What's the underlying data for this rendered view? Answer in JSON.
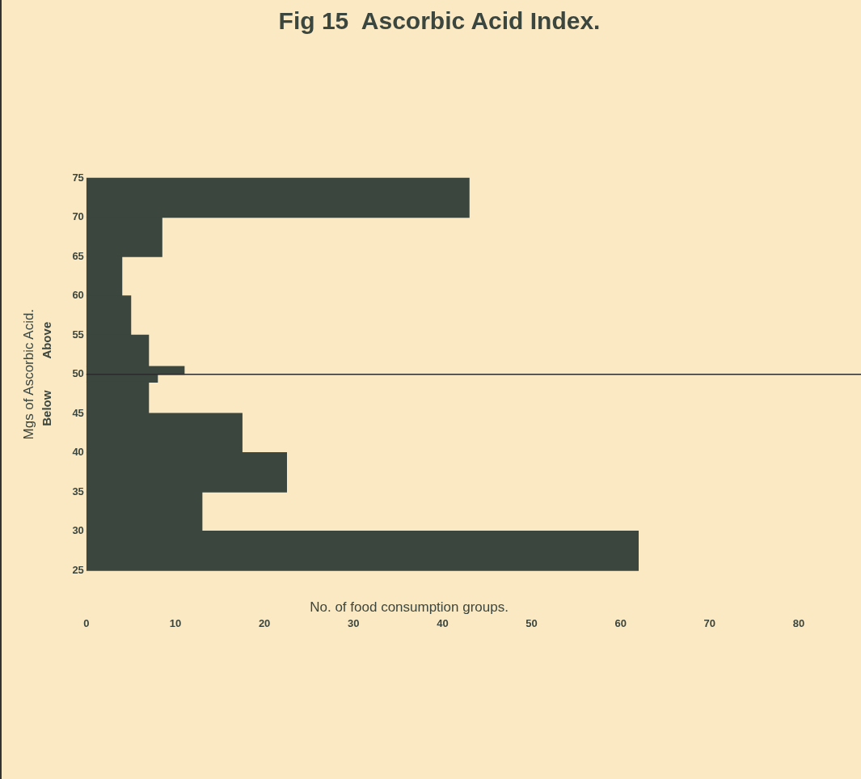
{
  "chart_data": {
    "type": "histogram",
    "orientation": "horizontal",
    "title": "Fig 15  Ascorbic Acid Index.",
    "xlabel": "No. of food consumption groups.",
    "ylabel": "Mgs of Ascorbic Acid.",
    "bins": [
      25,
      30,
      35,
      40,
      45,
      49,
      50,
      51,
      55,
      60,
      65,
      70,
      75
    ],
    "values": [
      62,
      13,
      22.5,
      17.5,
      7,
      8,
      11,
      7,
      5,
      4,
      8.5,
      43
    ],
    "color": "#3b463f",
    "xlim": [
      0,
      87
    ],
    "xticks": [
      0,
      10,
      20,
      30,
      40,
      50,
      60,
      70,
      80
    ],
    "ylim": [
      25,
      75
    ],
    "yticks": [
      25,
      30,
      35,
      40,
      45,
      50,
      55,
      60,
      65,
      70,
      75
    ],
    "ref_lines": [
      {
        "axis": "y",
        "value": 50,
        "color": "#2a2a2a"
      }
    ],
    "annotations": [
      "Above",
      "Below"
    ],
    "grid": false,
    "legend": false
  }
}
